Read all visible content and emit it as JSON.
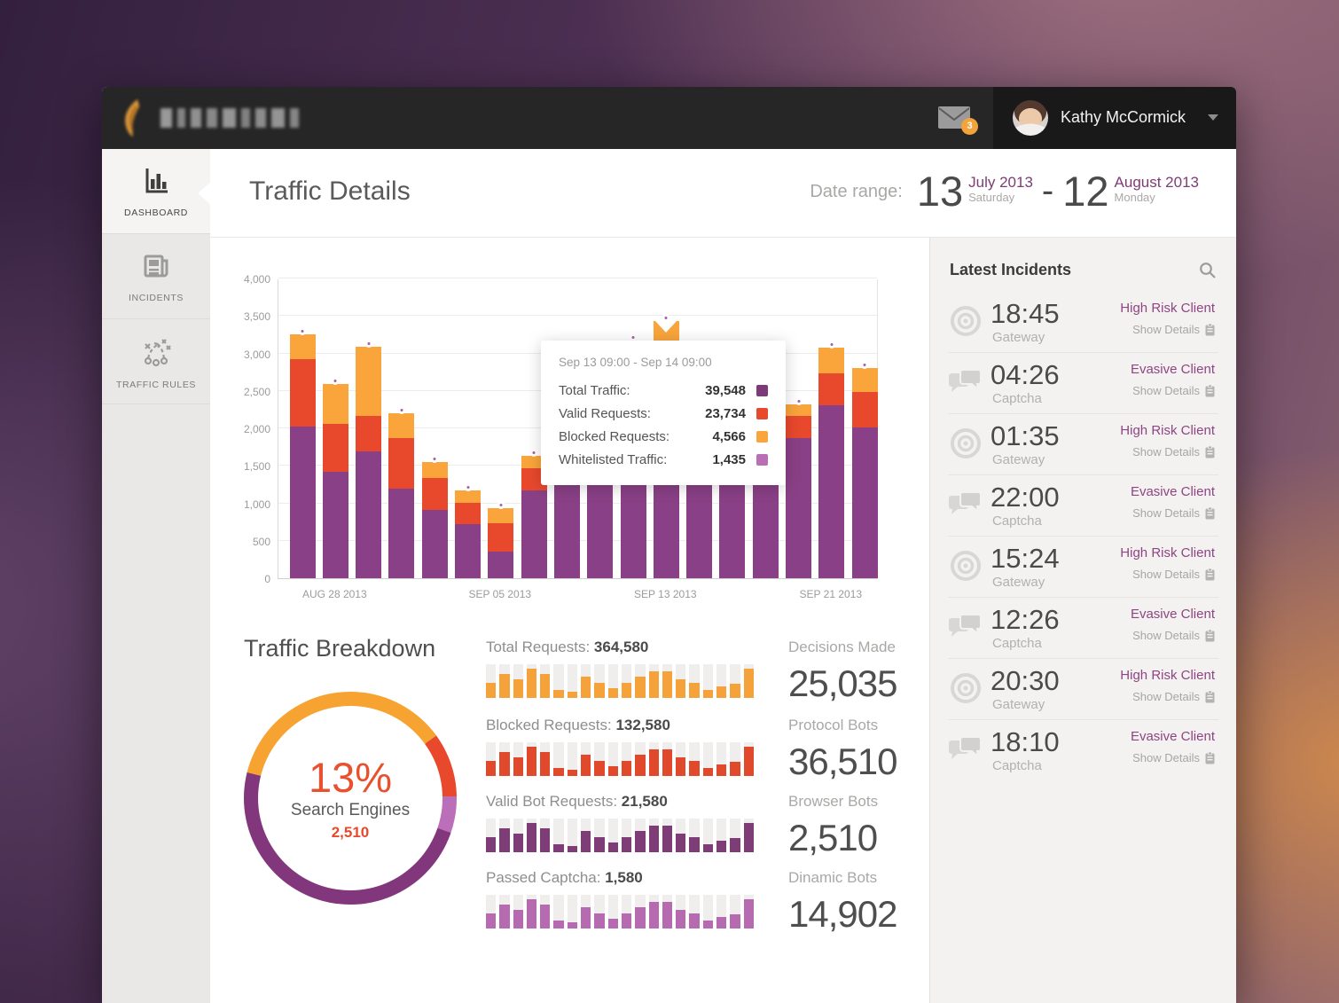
{
  "header": {
    "badge_count": "3",
    "user_name": "Kathy McCormick"
  },
  "sidebar": {
    "items": [
      {
        "label": "DASHBOARD",
        "icon": "bar-chart-icon",
        "active": true
      },
      {
        "label": "INCIDENTS",
        "icon": "newspaper-icon",
        "active": false
      },
      {
        "label": "TRAFFIC RULES",
        "icon": "strategy-icon",
        "active": false
      }
    ]
  },
  "page": {
    "title": "Traffic Details",
    "date_range": {
      "label": "Date range:",
      "start_day": "13",
      "start_month": "July 2013",
      "start_weekday": "Saturday",
      "separator": "-",
      "end_day": "12",
      "end_month": "August 2013",
      "end_weekday": "Monday"
    }
  },
  "chart_data": {
    "type": "bar",
    "stacked": true,
    "ylim": [
      0,
      4000
    ],
    "y_ticks": [
      "0",
      "500",
      "1,000",
      "1,500",
      "2,000",
      "2,500",
      "3,000",
      "3,500",
      "4,000"
    ],
    "grid": true,
    "series": [
      {
        "name": "Total Traffic",
        "key": "purple",
        "color": "#8a4086"
      },
      {
        "name": "Valid Requests",
        "key": "red",
        "color": "#e8492d"
      },
      {
        "name": "Blocked Requests",
        "key": "orange",
        "color": "#f9a53c"
      }
    ],
    "note": "values are cumulative stack tops (purple <= red <= orange/total); dot sits at total",
    "bars": [
      {
        "purple": 2025,
        "red": 2925,
        "orange": 3250
      },
      {
        "purple": 1425,
        "red": 2060,
        "orange": 2590
      },
      {
        "purple": 1690,
        "red": 2160,
        "orange": 3090
      },
      {
        "purple": 1200,
        "red": 1870,
        "orange": 2200
      },
      {
        "purple": 910,
        "red": 1340,
        "orange": 1550
      },
      {
        "purple": 720,
        "red": 1010,
        "orange": 1170
      },
      {
        "purple": 360,
        "red": 730,
        "orange": 930
      },
      {
        "purple": 1170,
        "red": 1470,
        "orange": 1630
      },
      {
        "purple": 1450,
        "red": 1850,
        "orange": 2050
      },
      {
        "purple": 1600,
        "red": 2000,
        "orange": 2250
      },
      {
        "purple": 1950,
        "red": 2750,
        "orange": 3170
      },
      {
        "purple": 2100,
        "red": 2950,
        "orange": 3430,
        "highlighted": true
      },
      {
        "purple": 1500,
        "red": 1900,
        "orange": 2150
      },
      {
        "purple": 1400,
        "red": 1800,
        "orange": 2000
      },
      {
        "purple": 1300,
        "red": 1650,
        "orange": 1850
      },
      {
        "purple": 1870,
        "red": 2166,
        "orange": 2320
      },
      {
        "purple": 2308,
        "red": 2734,
        "orange": 3077
      },
      {
        "purple": 2012,
        "red": 2485,
        "orange": 2805
      }
    ],
    "x_labels": [
      {
        "bar": 1,
        "label": "AUG 28 2013"
      },
      {
        "bar": 6,
        "label": "SEP 05 2013"
      },
      {
        "bar": 11,
        "label": "SEP 13 2013"
      },
      {
        "bar": 16,
        "label": "SEP 21 2013"
      }
    ]
  },
  "tooltip": {
    "period": "Sep 13 09:00 - Sep 14 09:00",
    "rows": [
      {
        "label": "Total Traffic:",
        "value": "39,548",
        "color": "#7d3a78"
      },
      {
        "label": "Valid Requests:",
        "value": "23,734",
        "color": "#e8482c"
      },
      {
        "label": "Blocked Requests:",
        "value": "4,566",
        "color": "#f9a53c"
      },
      {
        "label": "Whitelisted Traffic:",
        "value": "1,435",
        "color": "#b96fb5"
      }
    ]
  },
  "breakdown": {
    "title": "Traffic Breakdown",
    "donut": {
      "percent": "13%",
      "label": "Search Engines",
      "value": "2,510",
      "rotate_deg": 284,
      "segments": [
        {
          "name": "blocked",
          "color": "#f6a331",
          "deg": 130
        },
        {
          "name": "valid",
          "color": "#e8492d",
          "deg": 35
        },
        {
          "name": "whitelisted",
          "color": "#bb6fb8",
          "deg": 20
        },
        {
          "name": "total",
          "color": "#82367c",
          "deg": 175
        }
      ]
    }
  },
  "mini_charts": {
    "pattern_pct": [
      45,
      72,
      55,
      87,
      72,
      25,
      18,
      62,
      45,
      28,
      45,
      62,
      80,
      80,
      55,
      45,
      25,
      35,
      42,
      87
    ],
    "rows": [
      {
        "label": "Total Requests:",
        "value": "364,580",
        "color": "#f6a23a"
      },
      {
        "label": "Blocked Requests:",
        "value": "132,580",
        "color": "#e0492c"
      },
      {
        "label": "Valid Bot Requests:",
        "value": "21,580",
        "color": "#7e3d77"
      },
      {
        "label": "Passed Captcha:",
        "value": "1,580",
        "color": "#b66bb0"
      }
    ]
  },
  "stats": [
    {
      "label": "Decisions Made",
      "value": "25,035"
    },
    {
      "label": "Protocol Bots",
      "value": "36,510"
    },
    {
      "label": "Browser Bots",
      "value": "2,510"
    },
    {
      "label": "Dinamic Bots",
      "value": "14,902"
    }
  ],
  "incidents": {
    "title": "Latest Incidents",
    "action_label": "Show Details",
    "items": [
      {
        "time": "18:45",
        "channel": "Gateway",
        "risk": "High Risk Client"
      },
      {
        "time": "04:26",
        "channel": "Captcha",
        "risk": "Evasive Client"
      },
      {
        "time": "01:35",
        "channel": "Gateway",
        "risk": "High Risk Client"
      },
      {
        "time": "22:00",
        "channel": "Captcha",
        "risk": "Evasive Client"
      },
      {
        "time": "15:24",
        "channel": "Gateway",
        "risk": "High Risk Client"
      },
      {
        "time": "12:26",
        "channel": "Captcha",
        "risk": "Evasive Client"
      },
      {
        "time": "20:30",
        "channel": "Gateway",
        "risk": "High Risk Client"
      },
      {
        "time": "18:10",
        "channel": "Captcha",
        "risk": "Evasive Client"
      }
    ]
  }
}
